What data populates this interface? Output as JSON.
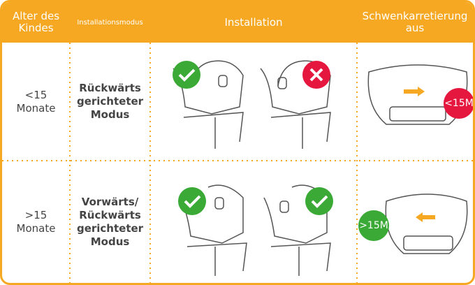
{
  "table": {
    "header": [
      "Alter des Kindes",
      "Installationsmodus",
      "Installation",
      "Schwenkarretierung aus"
    ],
    "rows": [
      [
        "<15 Monate",
        "Rückwärts gerichteter Modus",
        "<15M"
      ],
      [
        ">15 Monate",
        "Vorwärts/ Rückwärts gerichteter Modus",
        ">15M"
      ]
    ]
  }
}
